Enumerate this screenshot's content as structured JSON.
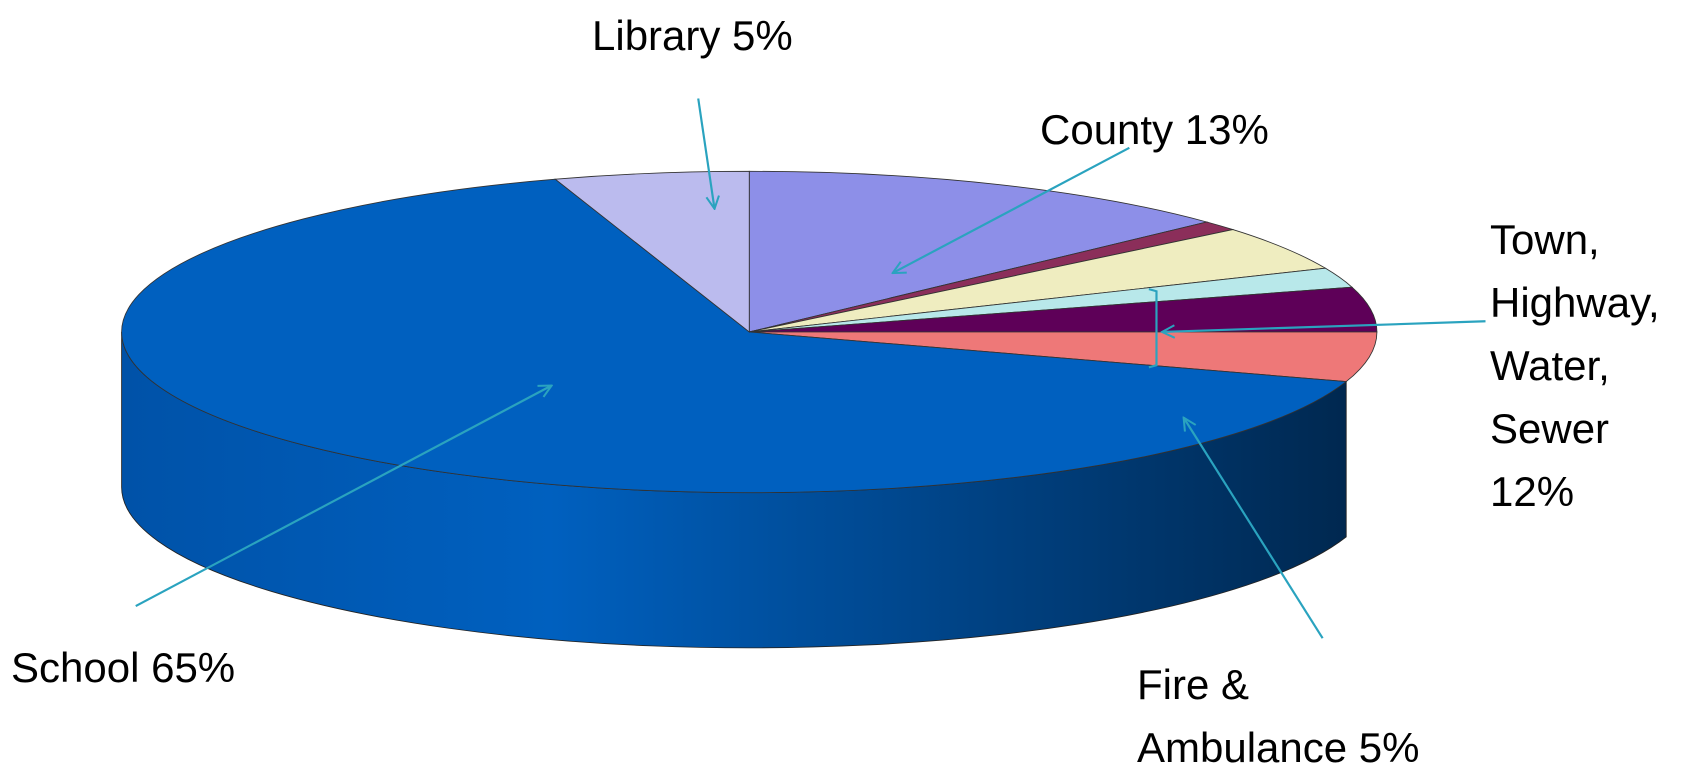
{
  "chart_data": {
    "type": "pie",
    "categories": [
      "County 13%",
      null,
      null,
      null,
      null,
      "Fire & Ambulance 5%",
      "School 65%",
      "Library 5%"
    ],
    "values": [
      13,
      1,
      4.5,
      2,
      4.5,
      5,
      65,
      5
    ],
    "colors": [
      "#8d8fe8",
      "#8b2e5a",
      "#efedc0",
      "#b8e8ea",
      "#5e0058",
      "#ee7878",
      "#0060bf",
      "#bbbbee"
    ],
    "annotations": [
      "Town, Highway, Water, Sewer 12%"
    ]
  }
}
